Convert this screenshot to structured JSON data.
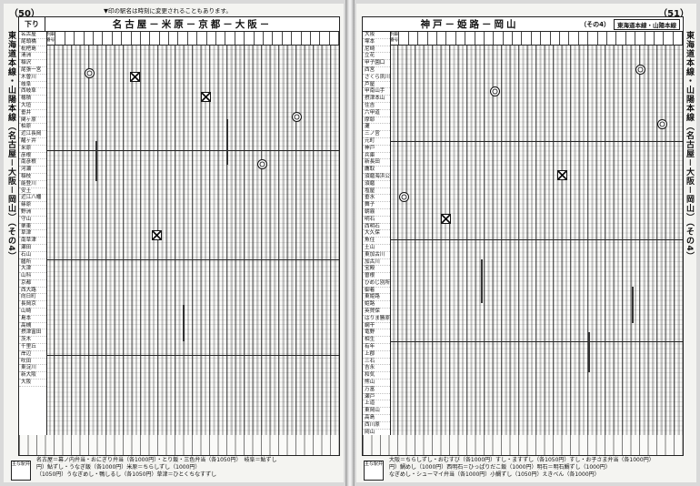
{
  "left_page": {
    "page_number": "（50）",
    "notice": "▼印の駅名は時刻に変更されることもあります。",
    "direction": "下り",
    "route_title": "名古屋－米原－京都－大阪－",
    "side_title": "東海道本線・山陽本線（名古屋－大阪－岡山）（その4）",
    "stations": [
      "名古屋",
      "尾頭橋",
      "枇杷島",
      "清洲",
      "稲沢",
      "尾張一宮",
      "木曽川",
      "岐阜",
      "西岐阜",
      "穂積",
      "大垣",
      "垂井",
      "関ヶ原",
      "柏原",
      "近江長岡",
      "醒ヶ井",
      "米原",
      "彦根",
      "南彦根",
      "河瀬",
      "稲枝",
      "能登川",
      "安土",
      "近江八幡",
      "篠原",
      "野洲",
      "守山",
      "栗東",
      "草津",
      "南草津",
      "瀬田",
      "石山",
      "膳所",
      "大津",
      "山科",
      "京都",
      "西大路",
      "向日町",
      "長岡京",
      "山崎",
      "島本",
      "高槻",
      "摂津富田",
      "茨木",
      "千里丘",
      "岸辺",
      "吹田",
      "東淀川",
      "新大阪",
      "大阪"
    ],
    "col_heads": [
      "列車番号",
      "",
      "",
      "",
      "",
      "",
      "",
      "",
      "",
      "",
      "",
      "",
      "",
      "",
      "",
      "",
      "",
      "",
      "",
      "",
      "",
      "",
      "",
      "",
      "",
      "",
      "",
      "",
      "",
      "",
      ""
    ],
    "bento_label": "主な駅弁",
    "bento_lines": [
      "名古屋＝幕ノ内弁当・おにぎり弁当（各1000円）・とり飯・三色弁当（各1050円）　岐阜＝鮎ずし",
      "円）鮎ずし・うなぎ飯（各1000円）米原＝ちらしずし（1000円）",
      "（1050円）うなぎめし・鴨しるし（各1050円）草津＝ひとくちなすずし"
    ]
  },
  "right_page": {
    "page_number": "（51）",
    "route_title": "神戸－姫路－岡山",
    "part": "（その4）",
    "line_name": "東海道本線・山陽本線",
    "side_title": "東海道本線・山陽本線（名古屋－大阪－岡山）（その4）",
    "stations": [
      "大阪",
      "塚本",
      "尼崎",
      "立花",
      "甲子園口",
      "西宮",
      "さくら夙川",
      "芦屋",
      "甲南山手",
      "摂津本山",
      "住吉",
      "六甲道",
      "摩耶",
      "灘",
      "三ノ宮",
      "元町",
      "神戸",
      "兵庫",
      "新長田",
      "鷹取",
      "須磨海浜公園",
      "須磨",
      "塩屋",
      "垂水",
      "舞子",
      "朝霧",
      "明石",
      "西明石",
      "大久保",
      "魚住",
      "土山",
      "東加古川",
      "加古川",
      "宝殿",
      "曽根",
      "ひめじ別所",
      "御着",
      "東姫路",
      "姫路",
      "英賀保",
      "はりま勝原",
      "網干",
      "竜野",
      "相生",
      "有年",
      "上郡",
      "三石",
      "吉永",
      "和気",
      "熊山",
      "万富",
      "瀬戸",
      "上道",
      "東岡山",
      "高島",
      "西川原",
      "岡山"
    ],
    "col_heads": [
      "列車番号",
      "",
      "",
      "",
      "",
      "",
      "",
      "",
      "",
      "",
      "",
      "",
      "",
      "",
      "",
      "",
      "",
      "",
      "",
      "",
      "",
      "",
      "",
      "",
      "",
      "",
      "",
      "",
      "",
      "",
      ""
    ],
    "bento_label": "主な駅弁",
    "bento_lines": [
      "大阪＝ちらしずし・おむすび（各1000円）すし・ますずし（各1050円）すし・お子さま弁当（各1000円）",
      "円）鯛めし（1000円）西明石＝ひっぱりだこ飯（1000円）明石＝明石鯛ずし（1000円）",
      "なぎめし・シューマイ弁当（各1000円）小鯛ずし（1050円）えきべん（各1000円）"
    ]
  }
}
